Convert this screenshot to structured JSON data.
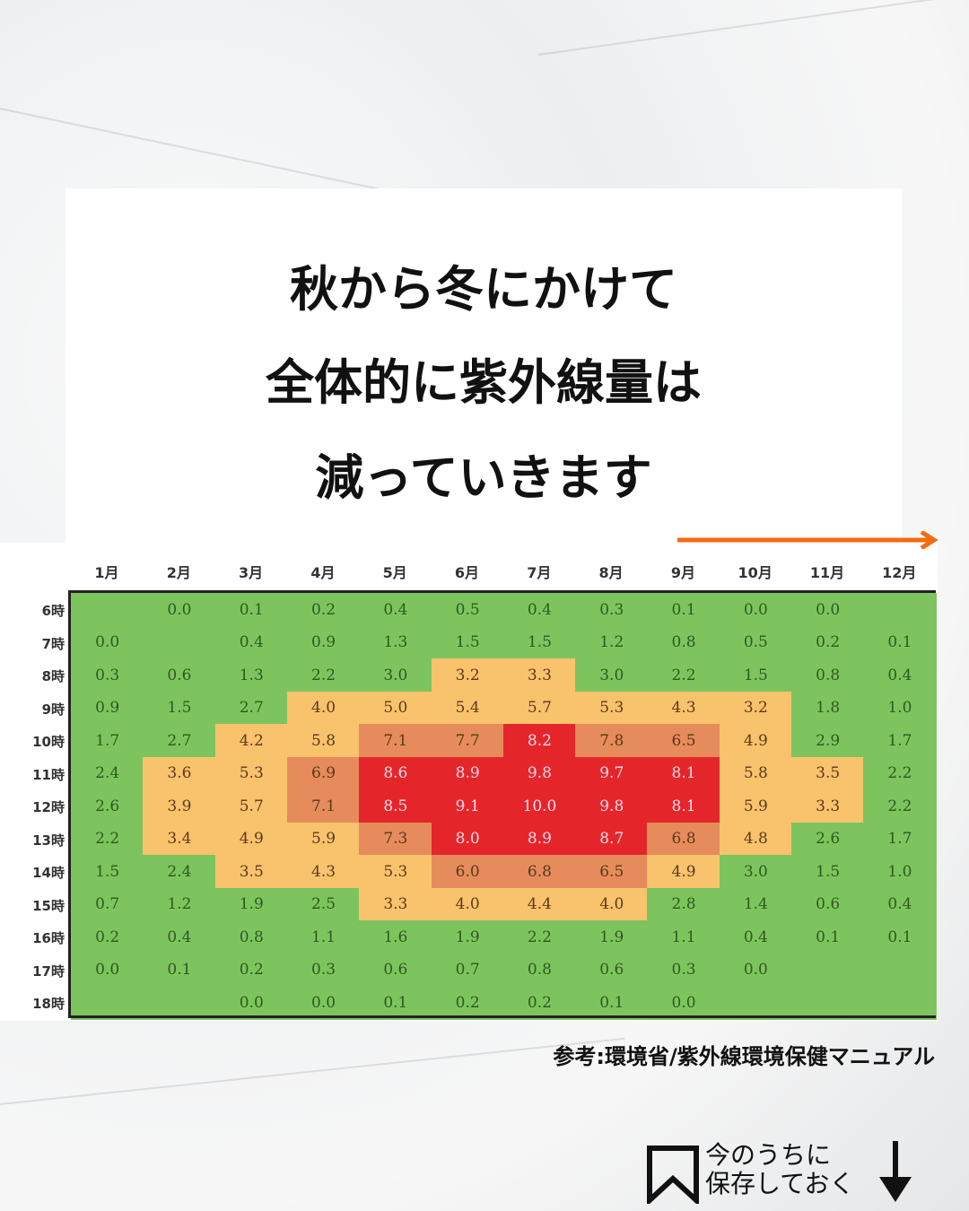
{
  "title_lines": [
    "秋から冬にかけて",
    "全体的に紫外線量は",
    "減っていきます"
  ],
  "source": "参考:環境省/紫外線環境保健マニュアル",
  "save_prompt": {
    "line1": "今のうちに",
    "line2": "保存しておく",
    "icon": "bookmark-icon",
    "arrow": "arrow-down-icon"
  },
  "arrow_color": "#f26b12",
  "chart_data": {
    "type": "heatmap",
    "columns": [
      "1月",
      "2月",
      "3月",
      "4月",
      "5月",
      "6月",
      "7月",
      "8月",
      "9月",
      "10月",
      "11月",
      "12月"
    ],
    "rows": [
      "6時",
      "7時",
      "8時",
      "9時",
      "10時",
      "11時",
      "12時",
      "13時",
      "14時",
      "15時",
      "16時",
      "17時",
      "18時"
    ],
    "values": [
      [
        null,
        0.0,
        0.1,
        0.2,
        0.4,
        0.5,
        0.4,
        0.3,
        0.1,
        0.0,
        0.0,
        null
      ],
      [
        0.0,
        null,
        0.4,
        0.9,
        1.3,
        1.5,
        1.5,
        1.2,
        0.8,
        0.5,
        0.2,
        0.1
      ],
      [
        0.3,
        0.6,
        1.3,
        2.2,
        3.0,
        3.2,
        3.3,
        3.0,
        2.2,
        1.5,
        0.8,
        0.4
      ],
      [
        0.9,
        1.5,
        2.7,
        4.0,
        5.0,
        5.4,
        5.7,
        5.3,
        4.3,
        3.2,
        1.8,
        1.0
      ],
      [
        1.7,
        2.7,
        4.2,
        5.8,
        7.1,
        7.7,
        8.2,
        7.8,
        6.5,
        4.9,
        2.9,
        1.7
      ],
      [
        2.4,
        3.6,
        5.3,
        6.9,
        8.6,
        8.9,
        9.8,
        9.7,
        8.1,
        5.8,
        3.5,
        2.2
      ],
      [
        2.6,
        3.9,
        5.7,
        7.1,
        8.5,
        9.1,
        10.0,
        9.8,
        8.1,
        5.9,
        3.3,
        2.2
      ],
      [
        2.2,
        3.4,
        4.9,
        5.9,
        7.3,
        8.0,
        8.9,
        8.7,
        6.8,
        4.8,
        2.6,
        1.7
      ],
      [
        1.5,
        2.4,
        3.5,
        4.3,
        5.3,
        6.0,
        6.8,
        6.5,
        4.9,
        3.0,
        1.5,
        1.0
      ],
      [
        0.7,
        1.2,
        1.9,
        2.5,
        3.3,
        4.0,
        4.4,
        4.0,
        2.8,
        1.4,
        0.6,
        0.4
      ],
      [
        0.2,
        0.4,
        0.8,
        1.1,
        1.6,
        1.9,
        2.2,
        1.9,
        1.1,
        0.4,
        0.1,
        0.1
      ],
      [
        0.0,
        0.1,
        0.2,
        0.3,
        0.6,
        0.7,
        0.8,
        0.6,
        0.3,
        0.0,
        null,
        null
      ],
      [
        null,
        null,
        0.0,
        0.0,
        0.1,
        0.2,
        0.2,
        0.1,
        0.0,
        null,
        null,
        null
      ]
    ],
    "color_scale": [
      {
        "max": 3.0,
        "color": "#7dc45f"
      },
      {
        "max": 5.9,
        "color": "#f9c26d"
      },
      {
        "max": 7.9,
        "color": "#e68b5c"
      },
      {
        "max": 10.0,
        "color": "#e4262b"
      }
    ]
  }
}
